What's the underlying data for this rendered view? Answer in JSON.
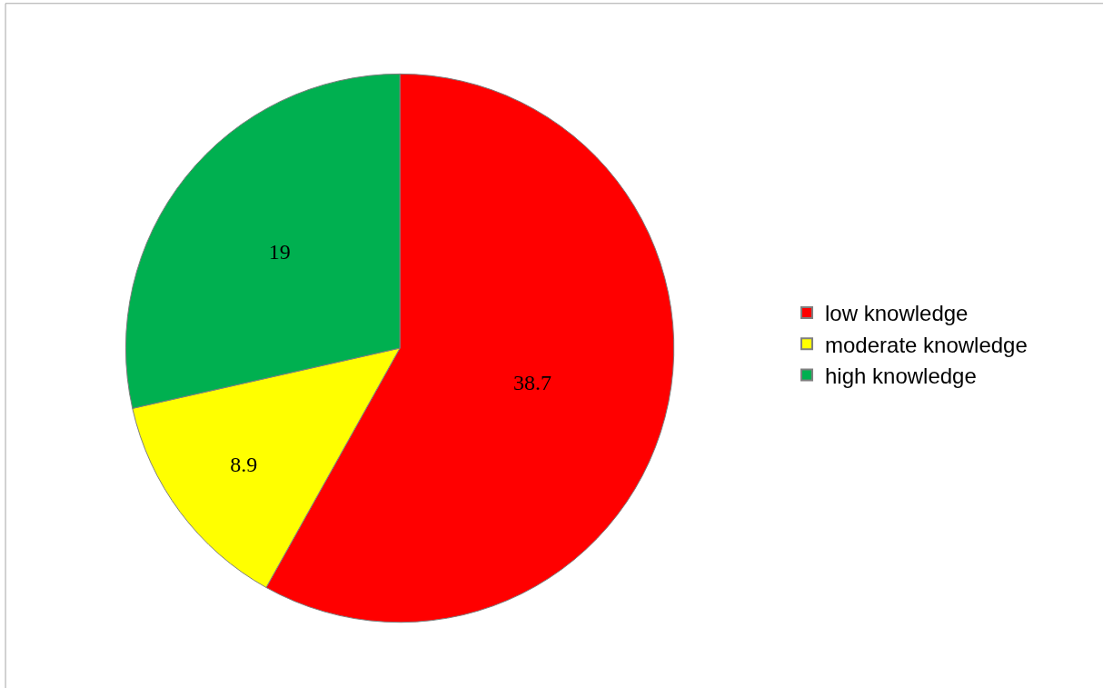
{
  "chart_data": {
    "type": "pie",
    "categories": [
      "low knowledge",
      "moderate knowledge",
      "high knowledge"
    ],
    "values": [
      38.7,
      8.9,
      19
    ],
    "colors": [
      "#ff0000",
      "#ffff00",
      "#00b050"
    ],
    "data_labels": true,
    "legend": "right"
  }
}
